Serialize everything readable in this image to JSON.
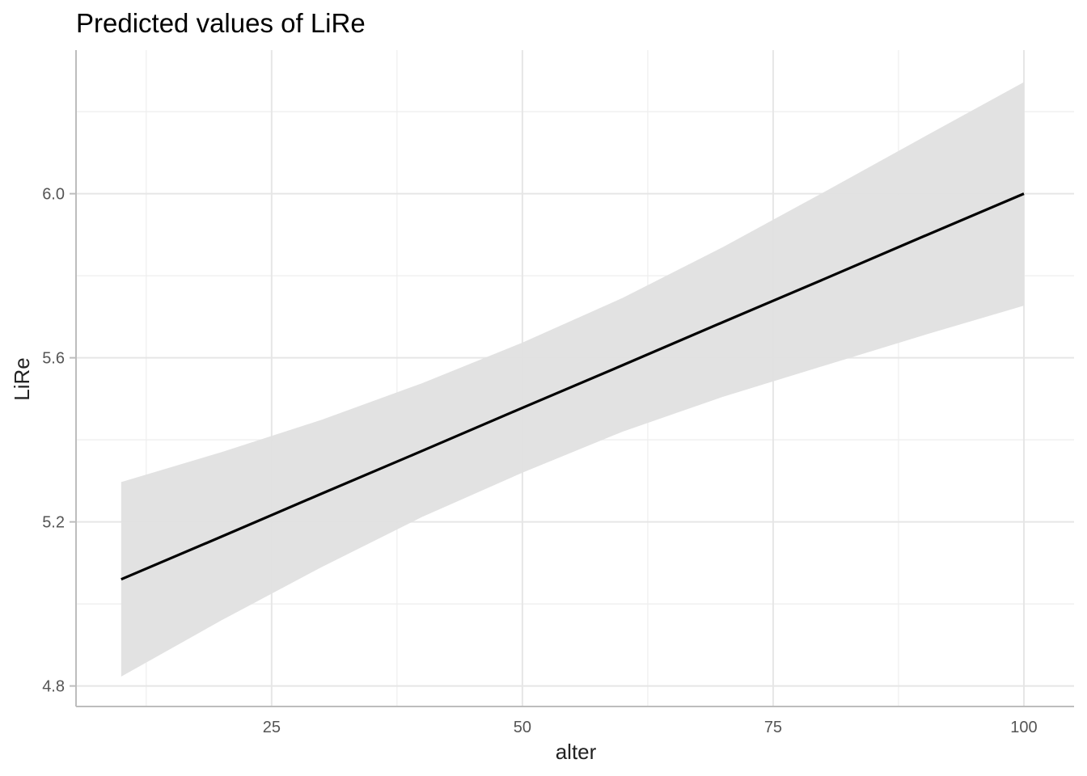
{
  "chart_data": {
    "type": "line",
    "title": "Predicted values of LiRe",
    "xlabel": "alter",
    "ylabel": "LiRe",
    "xlim": [
      5.5,
      105
    ],
    "ylim": [
      4.75,
      6.35
    ],
    "x_ticks": [
      25,
      50,
      75,
      100
    ],
    "x_tick_labels": [
      "25",
      "50",
      "75",
      "100"
    ],
    "x_minor_ticks": [
      12.5,
      37.5,
      62.5,
      87.5
    ],
    "y_ticks": [
      4.8,
      5.2,
      5.6,
      6.0
    ],
    "y_tick_labels": [
      "4.8",
      "5.2",
      "5.6",
      "6.0"
    ],
    "y_minor_ticks": [
      5.0,
      5.4,
      5.8,
      6.2
    ],
    "grid": true,
    "colors": {
      "line": "#000000",
      "ribbon": "#e0e0e0",
      "grid_major": "#e6e6e6",
      "grid_minor": "#eeeeee",
      "axis": "#bdbdbd"
    },
    "series": [
      {
        "x": [
          10,
          20,
          30,
          40,
          50,
          60,
          70,
          80,
          90,
          100
        ],
        "predicted": [
          5.06,
          5.164,
          5.269,
          5.373,
          5.478,
          5.582,
          5.687,
          5.791,
          5.896,
          6.0
        ],
        "ci_low": [
          4.823,
          4.96,
          5.09,
          5.212,
          5.32,
          5.42,
          5.505,
          5.58,
          5.655,
          5.727
        ],
        "ci_high": [
          5.297,
          5.37,
          5.449,
          5.538,
          5.637,
          5.746,
          5.87,
          6.003,
          6.138,
          6.272
        ]
      }
    ]
  }
}
